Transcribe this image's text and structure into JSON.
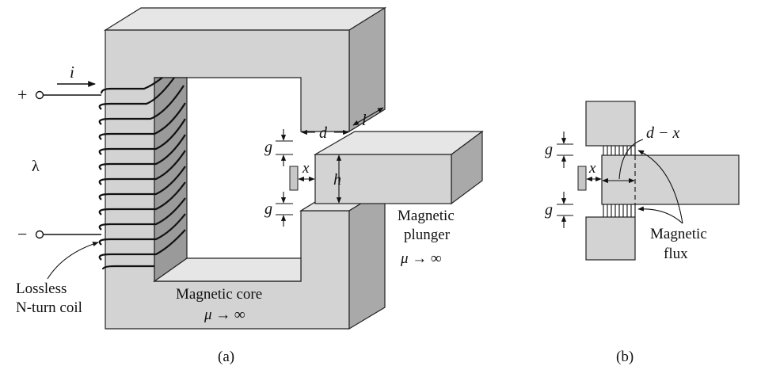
{
  "colors": {
    "front": "#d3d3d3",
    "top": "#e6e6e6",
    "side": "#a9a9a9",
    "line": "#111111"
  },
  "panel_a": {
    "current": "i",
    "plus": "+",
    "minus": "−",
    "flux_linkage": "λ",
    "coil_label_1": "Lossless",
    "coil_label_2": "N-turn coil",
    "core_label_1": "Magnetic core",
    "core_label_2": "μ → ∞",
    "plunger_label_1": "Magnetic",
    "plunger_label_2": "plunger",
    "plunger_label_3": "μ → ∞",
    "dim_d": "d",
    "dim_l": "l",
    "dim_g_top": "g",
    "dim_g_bottom": "g",
    "dim_x": "x",
    "dim_h": "h",
    "caption": "(a)"
  },
  "panel_b": {
    "dim_d_minus_x": "d − x",
    "dim_g_top": "g",
    "dim_g_bottom": "g",
    "dim_x": "x",
    "flux_label_1": "Magnetic",
    "flux_label_2": "flux",
    "caption": "(b)"
  }
}
